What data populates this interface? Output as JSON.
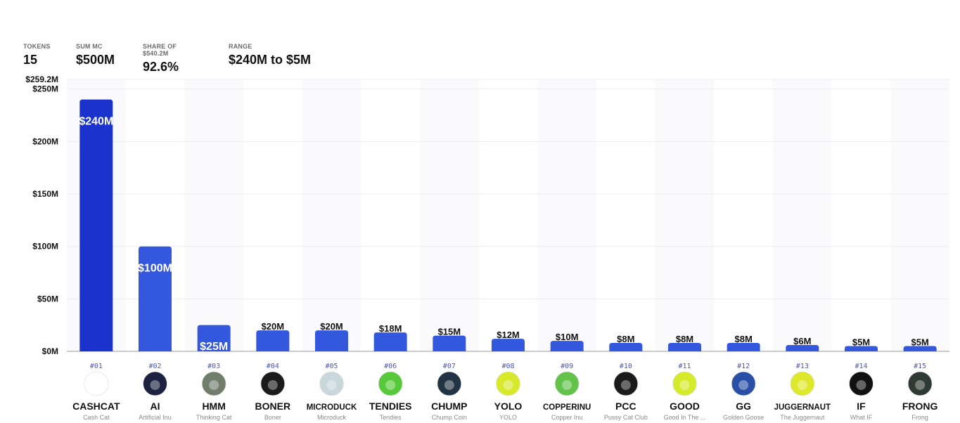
{
  "stats": [
    {
      "label": "TOKENS",
      "value": "15"
    },
    {
      "label": "SUM MC",
      "value": "$500M"
    },
    {
      "label": "SHARE OF $540.2M",
      "value": "92.6%"
    },
    {
      "label": "RANGE",
      "value": "$240M to $5M"
    }
  ],
  "chart_data": {
    "type": "bar",
    "title": "",
    "xlabel": "",
    "ylabel": "",
    "ylim": [
      0,
      259.2
    ],
    "y_unit": "$M",
    "y_top_label": "$259.2M",
    "y_ticks": [
      0,
      50,
      100,
      150,
      200,
      250
    ],
    "y_tick_labels": [
      "$0M",
      "$50M",
      "$100M",
      "$150M",
      "$200M",
      "$250M"
    ],
    "grid": true,
    "legend": "none",
    "categories": [
      "CASHCAT",
      "AI",
      "HMM",
      "BONER",
      "MICRODUCK",
      "TENDIES",
      "CHUMP",
      "YOLO",
      "COPPERINU",
      "PCC",
      "GOOD",
      "GG",
      "JUGGERNAUT",
      "IF",
      "FRONG"
    ],
    "values": [
      240,
      100,
      25,
      20,
      20,
      18,
      15,
      12,
      10,
      8,
      8,
      8,
      6,
      5,
      5
    ],
    "value_labels": [
      "$240M",
      "$100M",
      "$25M",
      "$20M",
      "$20M",
      "$18M",
      "$15M",
      "$12M",
      "$10M",
      "$8M",
      "$8M",
      "$8M",
      "$6M",
      "$5M",
      "$5M"
    ],
    "ranks": [
      "#01",
      "#02",
      "#03",
      "#04",
      "#05",
      "#06",
      "#07",
      "#08",
      "#09",
      "#10",
      "#11",
      "#12",
      "#13",
      "#14",
      "#15"
    ],
    "names": [
      "Cash Cat",
      "Artificial Inu",
      "Thinking Cat",
      "Boner",
      "Microduck",
      "Tendies",
      "Chump Coin",
      "YOLO",
      "Copper Inu",
      "Pussy Cat Club",
      "Good In The ...",
      "Golden Goose",
      "The Juggernaut",
      "What IF",
      "Frong"
    ]
  },
  "colors": {
    "bar_top": "#1a33cc",
    "bar_other": "#3358dd",
    "rank_text": "#4a56c8",
    "avatars": [
      "#ffffff",
      "#1c2240",
      "#6f7d6a",
      "#1b1b1b",
      "#c9d6dc",
      "#58c93a",
      "#223344",
      "#d8e82a",
      "#63c24a",
      "#1b1b1b",
      "#d4ea2a",
      "#2a4fa6",
      "#dde82a",
      "#111111",
      "#2f3a34"
    ]
  },
  "icons": [
    "cat-icon",
    "dog-astronaut-icon",
    "thinking-cat-icon",
    "boner-character-icon",
    "duck-icon",
    "nugget-icon",
    "trump-icon",
    "yolo-logo-icon",
    "copper-dog-icon",
    "cat-club-icon",
    "dog-face-icon",
    "goose-icon",
    "helmet-icon",
    "frog-silhouette-icon",
    "frog-icon"
  ]
}
